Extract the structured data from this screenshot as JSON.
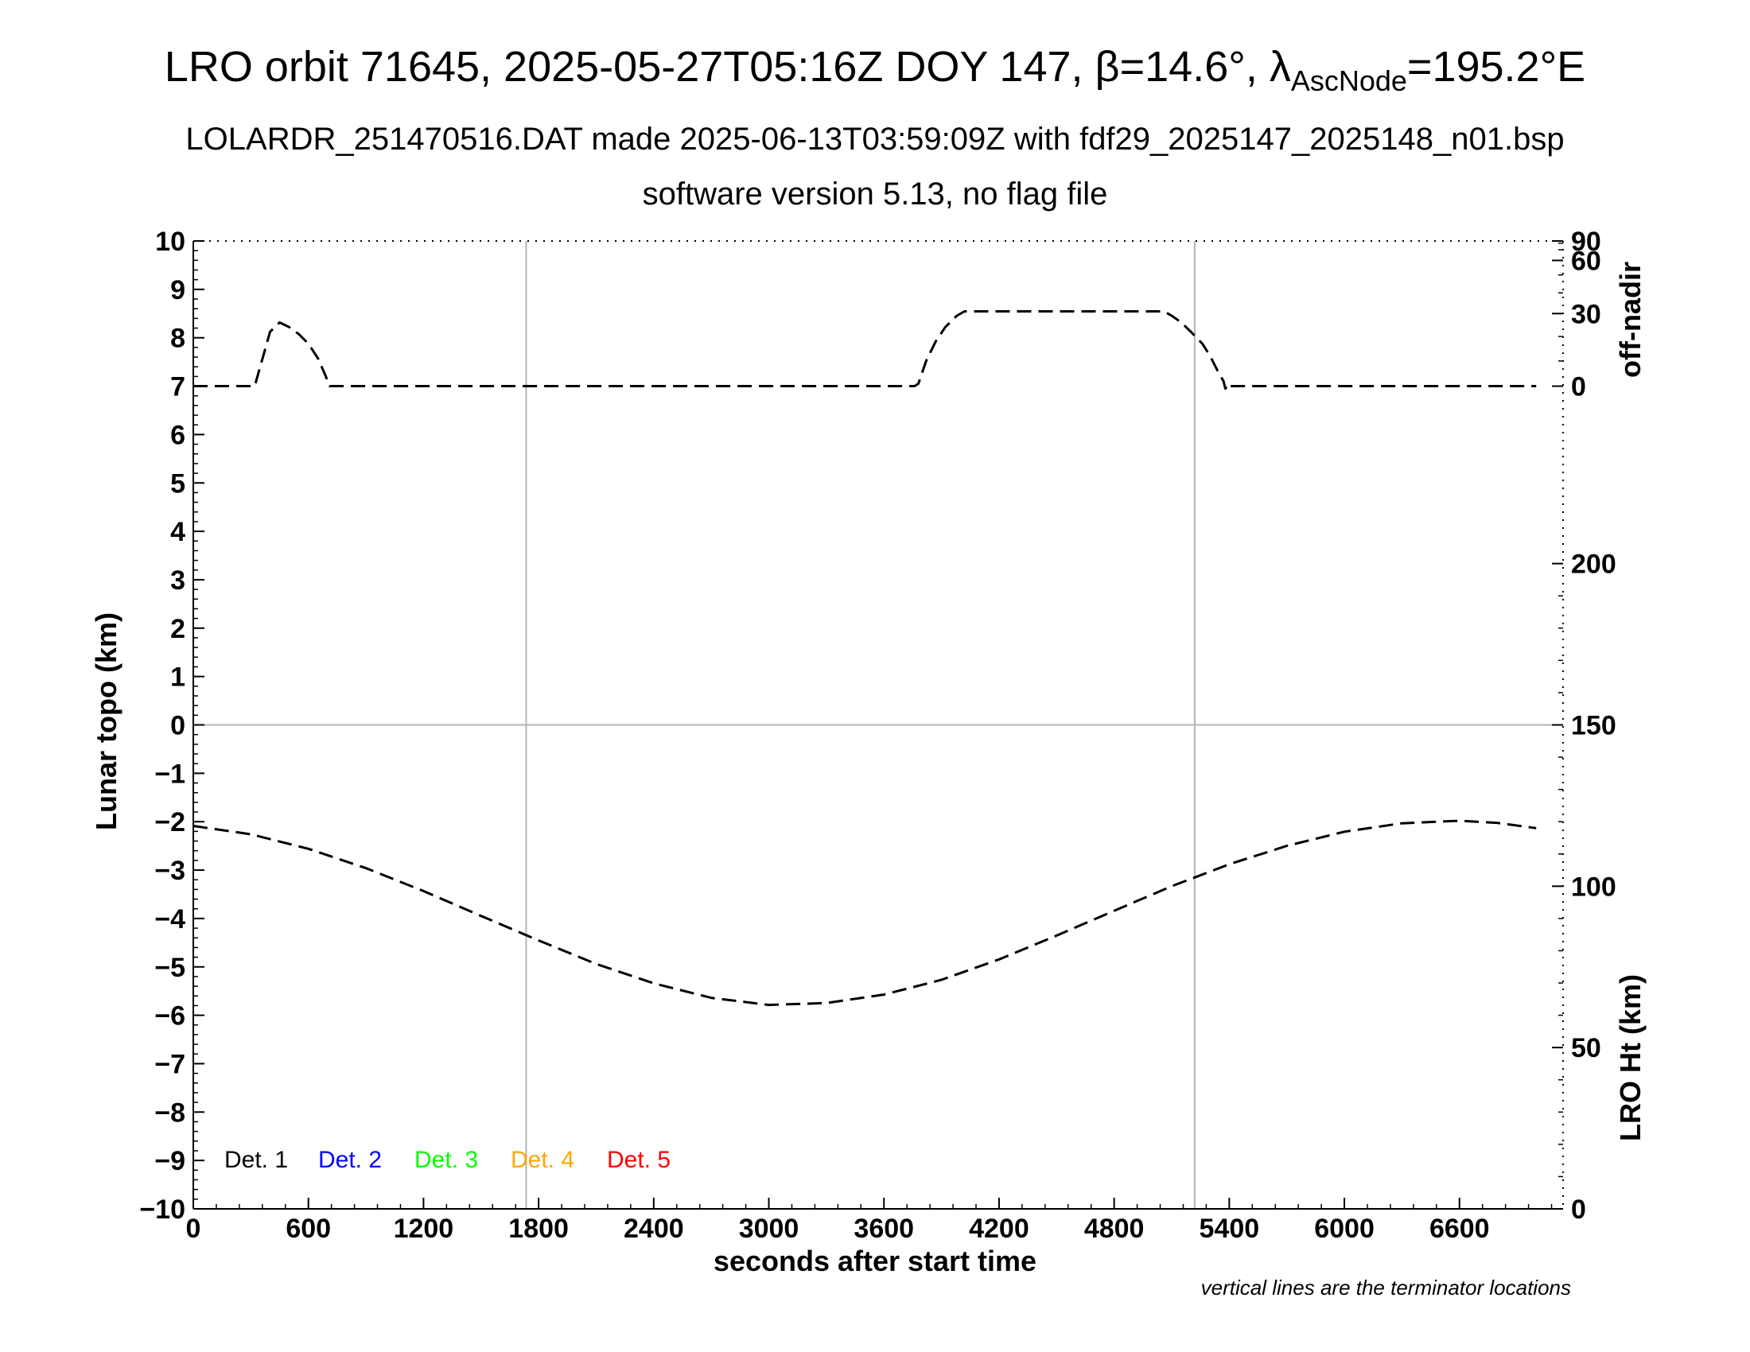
{
  "title": {
    "prefix": "LRO orbit 71645, 2025-05-27T05:16Z DOY 147, ",
    "beta": "β=14.6°, ",
    "lambda": "λ",
    "lambda_sub": "AscNode",
    "lambda_val": "=195.2°E"
  },
  "subtitle_1": "LOLARDR_251470516.DAT made 2025-06-13T03:59:09Z with fdf29_2025147_2025148_n01.bsp",
  "subtitle_2": "software version 5.13, no flag file",
  "note": "vertical lines are the terminator locations",
  "colors": {
    "det1": "#000000",
    "det2": "#0000ff",
    "det3": "#00ff00",
    "det4": "#ffa500",
    "det5": "#ff0000",
    "grid": "#b4b4b4"
  },
  "chart_data": {
    "type": "line",
    "xlabel": "seconds after start time",
    "xlim": [
      0,
      7140
    ],
    "xticks": [
      0,
      600,
      1200,
      1800,
      2400,
      3000,
      3600,
      4200,
      4800,
      5400,
      6000,
      6600
    ],
    "ylabel_left": "Lunar topo (km)",
    "ylim_left": [
      -10,
      10
    ],
    "yticks_left": [
      -10,
      -9,
      -8,
      -7,
      -6,
      -5,
      -4,
      -3,
      -2,
      -1,
      0,
      1,
      2,
      3,
      4,
      5,
      6,
      7,
      8,
      9,
      10
    ],
    "ylabel_right_top": "off-nadir",
    "yticks_right_top": [
      0,
      30,
      60,
      90
    ],
    "ylabel_right_bottom": "LRO Ht (km)",
    "ylim_right_bottom": [
      0,
      300
    ],
    "yticks_right_bottom": [
      0,
      50,
      100,
      150,
      200
    ],
    "terminator_x": [
      1735,
      5220
    ],
    "grid": true,
    "legend": {
      "placement": "bottom-left",
      "entries": [
        "Det. 1",
        "Det. 2",
        "Det. 3",
        "Det. 4",
        "Det. 5"
      ]
    },
    "series": [
      {
        "name": "off-nadir",
        "axis": "right-top",
        "style": "dashed",
        "points": [
          [
            0,
            0
          ],
          [
            320,
            0
          ],
          [
            350,
            8
          ],
          [
            400,
            22
          ],
          [
            450,
            26
          ],
          [
            500,
            24
          ],
          [
            550,
            21
          ],
          [
            600,
            17
          ],
          [
            650,
            11
          ],
          [
            690,
            4
          ],
          [
            710,
            0
          ],
          [
            3760,
            0
          ],
          [
            3780,
            1
          ],
          [
            3820,
            10
          ],
          [
            3870,
            18
          ],
          [
            3920,
            24
          ],
          [
            3980,
            29
          ],
          [
            4020,
            31
          ],
          [
            5060,
            31
          ],
          [
            5100,
            29
          ],
          [
            5150,
            26
          ],
          [
            5200,
            22
          ],
          [
            5260,
            17
          ],
          [
            5300,
            12
          ],
          [
            5340,
            6
          ],
          [
            5370,
            2
          ],
          [
            5380,
            -1
          ],
          [
            5395,
            1
          ],
          [
            5405,
            0
          ],
          [
            7000,
            0
          ]
        ]
      },
      {
        "name": "LRO Ht",
        "axis": "right-bottom",
        "style": "dashed",
        "points": [
          [
            0,
            118.7
          ],
          [
            300,
            116.1
          ],
          [
            600,
            111.6
          ],
          [
            900,
            105.6
          ],
          [
            1200,
            98.5
          ],
          [
            1500,
            90.8
          ],
          [
            1800,
            83.2
          ],
          [
            2100,
            75.9
          ],
          [
            2400,
            69.9
          ],
          [
            2700,
            65.4
          ],
          [
            3000,
            63.2
          ],
          [
            3300,
            63.8
          ],
          [
            3600,
            66.4
          ],
          [
            3900,
            71.0
          ],
          [
            4200,
            77.3
          ],
          [
            4500,
            84.7
          ],
          [
            4800,
            92.4
          ],
          [
            5100,
            100.0
          ],
          [
            5400,
            106.8
          ],
          [
            5700,
            112.5
          ],
          [
            6000,
            116.9
          ],
          [
            6300,
            119.5
          ],
          [
            6600,
            120.3
          ],
          [
            6800,
            119.6
          ],
          [
            7000,
            118.0
          ]
        ]
      }
    ]
  }
}
